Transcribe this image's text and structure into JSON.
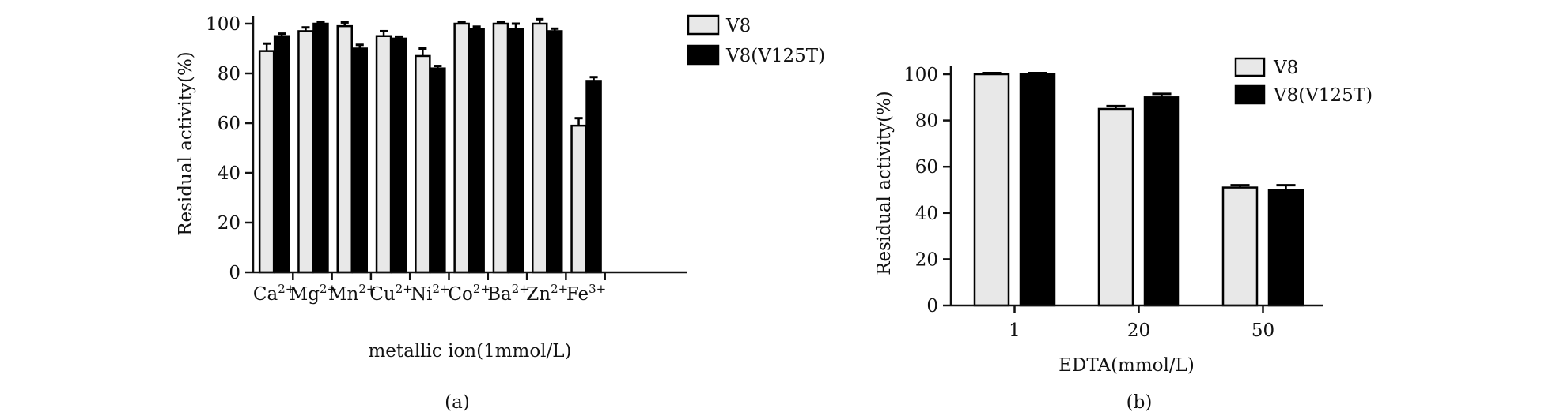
{
  "chart_data": [
    {
      "type": "bar",
      "panel_label": "(a)",
      "title": "",
      "xlabel": "metallic ion(1mmol/L)",
      "ylabel": "Residual activity(%)",
      "ylim": [
        0,
        100
      ],
      "yticks": [
        "0",
        "20",
        "40",
        "60",
        "80",
        "100"
      ],
      "categories": [
        {
          "base": "Ca",
          "sup": "2+"
        },
        {
          "base": "Mg",
          "sup": "2+"
        },
        {
          "base": "Mn",
          "sup": "2+"
        },
        {
          "base": "Cu",
          "sup": "2+"
        },
        {
          "base": "Ni",
          "sup": "2+"
        },
        {
          "base": "Co",
          "sup": "2+"
        },
        {
          "base": "Ba",
          "sup": "2+"
        },
        {
          "base": "Zn",
          "sup": "2+"
        },
        {
          "base": "Fe",
          "sup": "3+"
        }
      ],
      "series": [
        {
          "name": "V8",
          "color": "#e8e8e8",
          "values": [
            89,
            97,
            99,
            95,
            87,
            100,
            100,
            100,
            59
          ],
          "errors": [
            3,
            1.5,
            1.5,
            2,
            3,
            0.8,
            0.8,
            1.8,
            3
          ]
        },
        {
          "name": "V8(V125T)",
          "color": "#000000",
          "values": [
            95,
            100,
            90,
            94,
            82,
            98,
            98,
            97,
            77
          ],
          "errors": [
            1,
            0.8,
            1.5,
            0.8,
            1,
            0.8,
            2,
            1,
            1.5
          ]
        }
      ],
      "legend_position": "top-right",
      "grid": false
    },
    {
      "type": "bar",
      "panel_label": "(b)",
      "title": "",
      "xlabel": "EDTA(mmol/L)",
      "ylabel": "Residual activity(%)",
      "ylim": [
        0,
        100
      ],
      "yticks": [
        "0",
        "20",
        "40",
        "60",
        "80",
        "100"
      ],
      "categories": [
        {
          "base": "1",
          "sup": ""
        },
        {
          "base": "20",
          "sup": ""
        },
        {
          "base": "50",
          "sup": ""
        }
      ],
      "series": [
        {
          "name": "V8",
          "color": "#e8e8e8",
          "values": [
            100,
            85,
            51
          ],
          "errors": [
            0.5,
            1.2,
            1
          ]
        },
        {
          "name": "V8(V125T)",
          "color": "#000000",
          "values": [
            100,
            90,
            50
          ],
          "errors": [
            0.5,
            1.5,
            2
          ]
        }
      ],
      "legend_position": "top-right",
      "grid": false
    }
  ]
}
